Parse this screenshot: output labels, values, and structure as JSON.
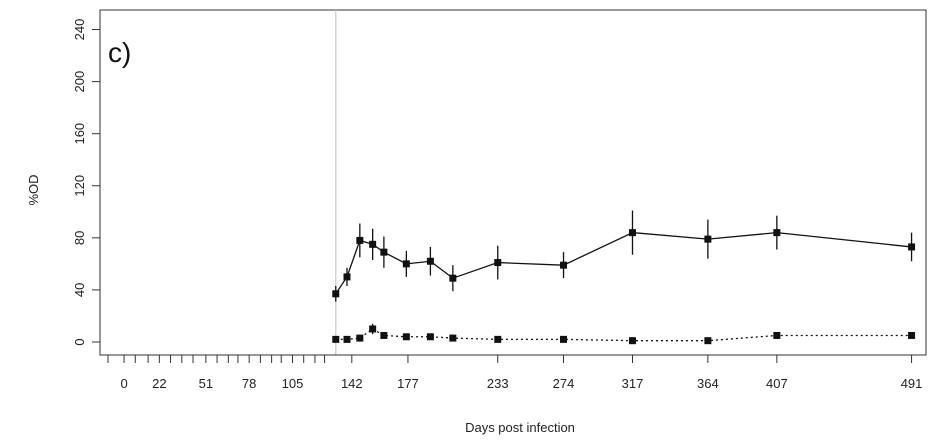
{
  "chart_data": {
    "type": "line",
    "panel_label": "c)",
    "xlabel": "Days post infection",
    "ylabel": "%OD",
    "xlim": [
      -15,
      500
    ],
    "ylim": [
      -10,
      255
    ],
    "x_ticks": [
      0,
      22,
      51,
      78,
      105,
      142,
      177,
      233,
      274,
      317,
      364,
      407,
      491
    ],
    "x_minor_ticks": [
      -10,
      7,
      15,
      29,
      36,
      43,
      58,
      65,
      71,
      85,
      92,
      98,
      112,
      119,
      125
    ],
    "y_ticks": [
      0,
      40,
      80,
      120,
      160,
      200,
      240
    ],
    "reference_line_x": 132,
    "grid": false,
    "legend": "none",
    "series": [
      {
        "line_style": "solid",
        "color": "#111111",
        "points": [
          {
            "x": 132,
            "y": 37,
            "err": 6
          },
          {
            "x": 139,
            "y": 50,
            "err": 7
          },
          {
            "x": 147,
            "y": 78,
            "err": 13
          },
          {
            "x": 155,
            "y": 75,
            "err": 12
          },
          {
            "x": 162,
            "y": 69,
            "err": 12
          },
          {
            "x": 176,
            "y": 60,
            "err": 10
          },
          {
            "x": 191,
            "y": 62,
            "err": 11
          },
          {
            "x": 205,
            "y": 49,
            "err": 10
          },
          {
            "x": 233,
            "y": 61,
            "err": 13
          },
          {
            "x": 274,
            "y": 59,
            "err": 10
          },
          {
            "x": 317,
            "y": 84,
            "err": 17
          },
          {
            "x": 364,
            "y": 79,
            "err": 15
          },
          {
            "x": 407,
            "y": 84,
            "err": 13
          },
          {
            "x": 491,
            "y": 73,
            "err": 11
          }
        ]
      },
      {
        "line_style": "dotted",
        "color": "#111111",
        "points": [
          {
            "x": 132,
            "y": 2,
            "err": 0
          },
          {
            "x": 139,
            "y": 2,
            "err": 0
          },
          {
            "x": 147,
            "y": 3,
            "err": 0
          },
          {
            "x": 155,
            "y": 10,
            "err": 4
          },
          {
            "x": 162,
            "y": 5,
            "err": 0
          },
          {
            "x": 176,
            "y": 4,
            "err": 0
          },
          {
            "x": 191,
            "y": 4,
            "err": 0
          },
          {
            "x": 205,
            "y": 3,
            "err": 0
          },
          {
            "x": 233,
            "y": 2,
            "err": 0
          },
          {
            "x": 274,
            "y": 2,
            "err": 0
          },
          {
            "x": 317,
            "y": 1,
            "err": 0
          },
          {
            "x": 364,
            "y": 1,
            "err": 0
          },
          {
            "x": 407,
            "y": 5,
            "err": 0
          },
          {
            "x": 491,
            "y": 5,
            "err": 0
          }
        ]
      }
    ]
  }
}
